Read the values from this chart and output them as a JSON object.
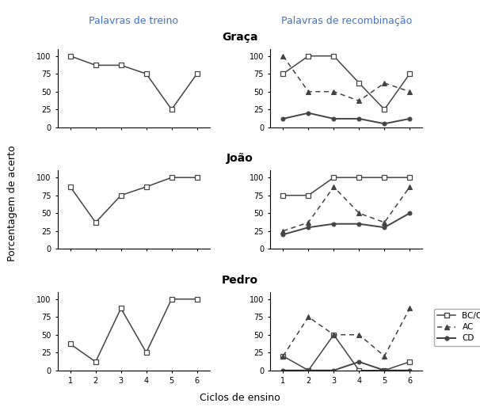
{
  "x": [
    1,
    2,
    3,
    4,
    5,
    6
  ],
  "col_left_data": {
    "Graca_BC": [
      100,
      87,
      87,
      75,
      25,
      75
    ],
    "Joao_BC": [
      87,
      37,
      75,
      87,
      100,
      100
    ],
    "Pedro_BC": [
      37,
      12,
      87,
      25,
      100,
      100
    ]
  },
  "col_right_data": {
    "Graca_BC": [
      75,
      100,
      100,
      62,
      25,
      75
    ],
    "Graca_AC": [
      100,
      50,
      50,
      37,
      62,
      50
    ],
    "Graca_CD": [
      12,
      20,
      12,
      12,
      5,
      12
    ],
    "Joao_BC": [
      75,
      75,
      100,
      100,
      100,
      100
    ],
    "Joao_AC": [
      25,
      37,
      87,
      50,
      37,
      87
    ],
    "Joao_CD": [
      20,
      30,
      35,
      35,
      30,
      50
    ],
    "Pedro_BC": [
      20,
      0,
      50,
      0,
      0,
      12
    ],
    "Pedro_AC": [
      20,
      75,
      50,
      50,
      20,
      87
    ],
    "Pedro_CD": [
      0,
      0,
      0,
      12,
      0,
      0
    ]
  },
  "header_left": "Palavras de treino",
  "header_right": "Palavras de recombinação",
  "ylabel": "Porcentagem de acerto",
  "xlabel": "Ciclos de ensino",
  "row_titles": [
    "Graça",
    "João",
    "Pedro"
  ],
  "legend_labels": [
    "BC/CB",
    "AC",
    "CD"
  ],
  "ylim": [
    0,
    110
  ],
  "yticks": [
    0,
    25,
    50,
    75,
    100
  ],
  "line_color": "#444444",
  "header_color": "#4472C4",
  "row_title_color": "#000000",
  "header_fontsize": 9,
  "row_title_fontsize": 10,
  "tick_fontsize": 7,
  "axis_label_fontsize": 9,
  "legend_fontsize": 7.5
}
